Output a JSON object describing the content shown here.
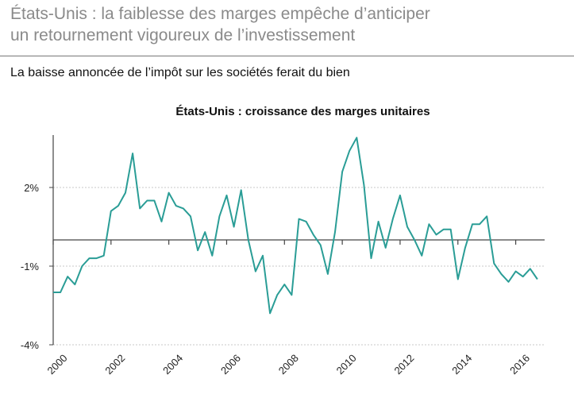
{
  "headline": {
    "line1": "États-Unis : la faiblesse des marges empêche d’anticiper",
    "line2": "un retournement vigoureux de l’investissement"
  },
  "subheadline": "La baisse annoncée de l’impôt sur les sociétés ferait du bien",
  "colors": {
    "line": "#2a9d96",
    "grid": "#c8c8c8",
    "axis": "#444444",
    "headline": "#8a8a8a"
  },
  "chart_data": {
    "type": "line",
    "title": "États-Unis : croissance des marges unitaires",
    "xlabel": "",
    "ylabel": "",
    "xlim": [
      2000,
      2017
    ],
    "ylim": [
      -4,
      4
    ],
    "grid": true,
    "y_ticks": [
      {
        "value": 2,
        "label": "2%"
      },
      {
        "value": -1,
        "label": "-1%"
      },
      {
        "value": -4,
        "label": "-4%"
      }
    ],
    "x_ticks": [
      {
        "value": 2000,
        "label": "2000"
      },
      {
        "value": 2002,
        "label": "2002"
      },
      {
        "value": 2004,
        "label": "2004"
      },
      {
        "value": 2006,
        "label": "2006"
      },
      {
        "value": 2008,
        "label": "2008"
      },
      {
        "value": 2010,
        "label": "2010"
      },
      {
        "value": 2012,
        "label": "2012"
      },
      {
        "value": 2014,
        "label": "2014"
      },
      {
        "value": 2016,
        "label": "2016"
      }
    ],
    "series": [
      {
        "x": [
          2000.0,
          2000.25,
          2000.5,
          2000.75,
          2001.0,
          2001.25,
          2001.5,
          2001.75,
          2002.0,
          2002.25,
          2002.5,
          2002.75,
          2003.0,
          2003.25,
          2003.5,
          2003.75,
          2004.0,
          2004.25,
          2004.5,
          2004.75,
          2005.0,
          2005.25,
          2005.5,
          2005.75,
          2006.0,
          2006.25,
          2006.5,
          2006.75,
          2007.0,
          2007.25,
          2007.5,
          2007.75,
          2008.0,
          2008.25,
          2008.5,
          2008.75,
          2009.0,
          2009.25,
          2009.5,
          2009.75,
          2010.0,
          2010.25,
          2010.5,
          2010.75,
          2011.0,
          2011.25,
          2011.5,
          2011.75,
          2012.0,
          2012.25,
          2012.5,
          2012.75,
          2013.0,
          2013.25,
          2013.5,
          2013.75,
          2014.0,
          2014.25,
          2014.5,
          2014.75,
          2015.0,
          2015.25,
          2015.5,
          2015.75,
          2016.0,
          2016.25,
          2016.5,
          2016.75
        ],
        "values": [
          -2.0,
          -2.0,
          -1.4,
          -1.7,
          -1.0,
          -0.7,
          -0.7,
          -0.6,
          1.1,
          1.3,
          1.8,
          3.3,
          1.2,
          1.5,
          1.5,
          0.7,
          1.8,
          1.3,
          1.2,
          0.9,
          -0.4,
          0.3,
          -0.6,
          0.9,
          1.7,
          0.5,
          1.9,
          0.0,
          -1.2,
          -0.6,
          -2.8,
          -2.1,
          -1.7,
          -2.1,
          0.8,
          0.7,
          0.2,
          -0.2,
          -1.3,
          0.3,
          2.6,
          3.4,
          3.9,
          2.1,
          -0.7,
          0.7,
          -0.3,
          0.8,
          1.7,
          0.5,
          0.0,
          -0.6,
          0.6,
          0.2,
          0.4,
          0.4,
          -1.5,
          -0.3,
          0.6,
          0.6,
          0.9,
          -0.9,
          -1.3,
          -1.6,
          -1.2,
          -1.4,
          -1.1,
          -1.5
        ]
      }
    ]
  }
}
